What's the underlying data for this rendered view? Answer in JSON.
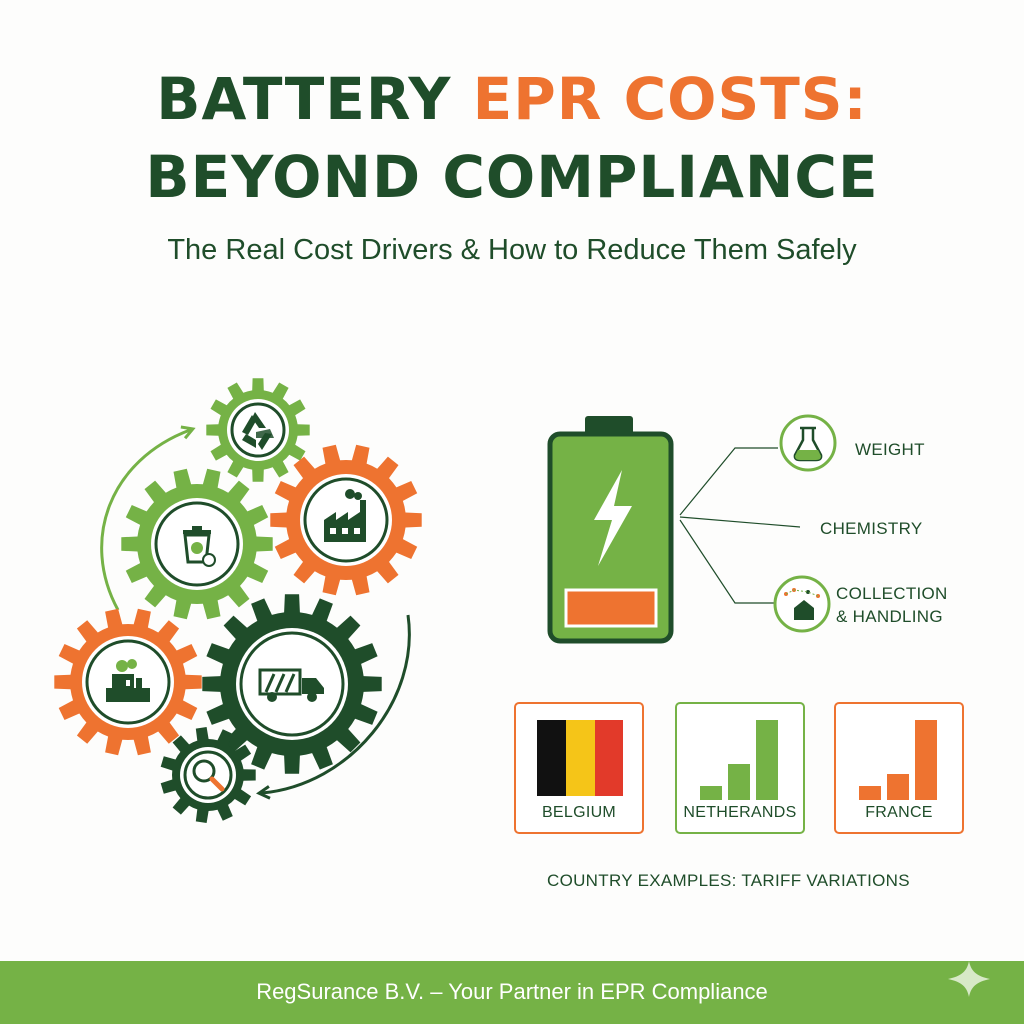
{
  "header": {
    "title_line1_part1": "BATTERY ",
    "title_line1_part2": "EPR COSTS:",
    "title_line2": "BEYOND COMPLIANCE",
    "subtitle": "The Real Cost Drivers & How to Reduce Them Safely"
  },
  "gears": {
    "icons": [
      "recycle-icon",
      "recycling-bin-icon",
      "factory-icon",
      "industrial-plant-icon",
      "truck-icon",
      "magnifier-icon"
    ]
  },
  "battery": {
    "drivers": [
      {
        "label": "WEIGHT",
        "icon": "flask-icon"
      },
      {
        "label": "CHEMISTRY"
      },
      {
        "label_line1": "COLLECTION",
        "label_line2": "& HANDLING",
        "icon": "house-network-icon"
      }
    ]
  },
  "countries": {
    "items": [
      {
        "name": "BELGIUM"
      },
      {
        "name": "NETHERANDS",
        "bar_levels": [
          0.14,
          0.36,
          0.8
        ]
      },
      {
        "name": "FRANCE",
        "bar_levels": [
          0.14,
          0.26,
          0.8
        ]
      }
    ],
    "caption": "COUNTRY EXAMPLES: TARIFF VARIATIONS"
  },
  "footer": {
    "text": "RegSurance B.V. – Your Partner in EPR Compliance"
  },
  "colors": {
    "dark_green": "#1f4d2a",
    "light_green": "#75b246",
    "orange": "#ee7330",
    "belgium_black": "#111111",
    "belgium_yellow": "#f5c518",
    "belgium_red": "#e23a2a"
  }
}
